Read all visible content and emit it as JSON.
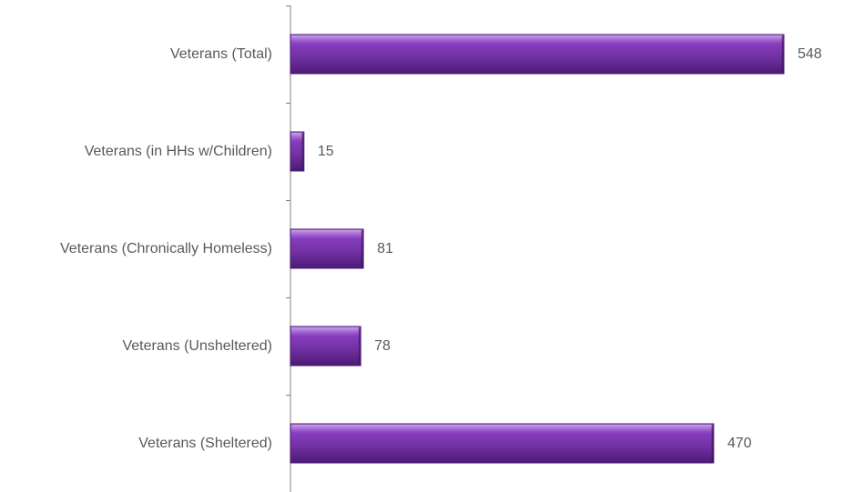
{
  "chart_data": {
    "type": "bar",
    "orientation": "horizontal",
    "categories": [
      "Veterans (Total)",
      "Veterans (in HHs w/Children)",
      "Veterans (Chronically Homeless)",
      "Veterans (Unsheltered)",
      "Veterans (Sheltered)"
    ],
    "values": [
      548,
      15,
      81,
      78,
      470
    ],
    "data_labels": [
      "548",
      "15",
      "81",
      "78",
      "470"
    ],
    "xlim": [
      0,
      548
    ],
    "grid": false,
    "legend": "none",
    "colors": {
      "bar": "#7030A0",
      "bar_light": "#9b59d0",
      "bar_dark": "#4b1a73",
      "axis": "#808080",
      "text": "#595959"
    }
  }
}
